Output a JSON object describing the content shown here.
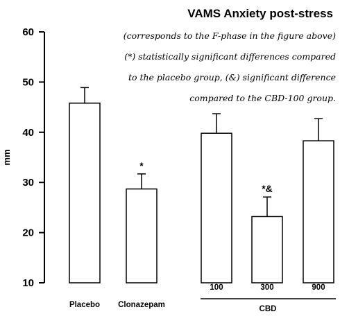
{
  "chart_data": {
    "type": "bar",
    "title": "VAMS Anxiety post-stress",
    "notes": [
      "(corresponds to the F-phase in the figure above)",
      "(*) statistically significant differences compared",
      "to the placebo group, (&) significant difference",
      "compared to the CBD-100 group."
    ],
    "ylabel": "mm",
    "ylim": [
      10,
      60
    ],
    "yticks": [
      10,
      20,
      30,
      40,
      50,
      60
    ],
    "categories": [
      "Placebo",
      "Clonazepam",
      "100",
      "300",
      "900"
    ],
    "group": {
      "label": "CBD",
      "members": [
        "100",
        "300",
        "900"
      ]
    },
    "values": [
      45.8,
      28.7,
      39.8,
      23.2,
      38.3
    ],
    "errors": [
      3.1,
      3.0,
      3.9,
      3.9,
      4.4
    ],
    "annotations": [
      "",
      "*",
      "",
      "*&",
      ""
    ],
    "bar_fill": "#ffffff",
    "bar_stroke": "#000000",
    "grid": false
  }
}
